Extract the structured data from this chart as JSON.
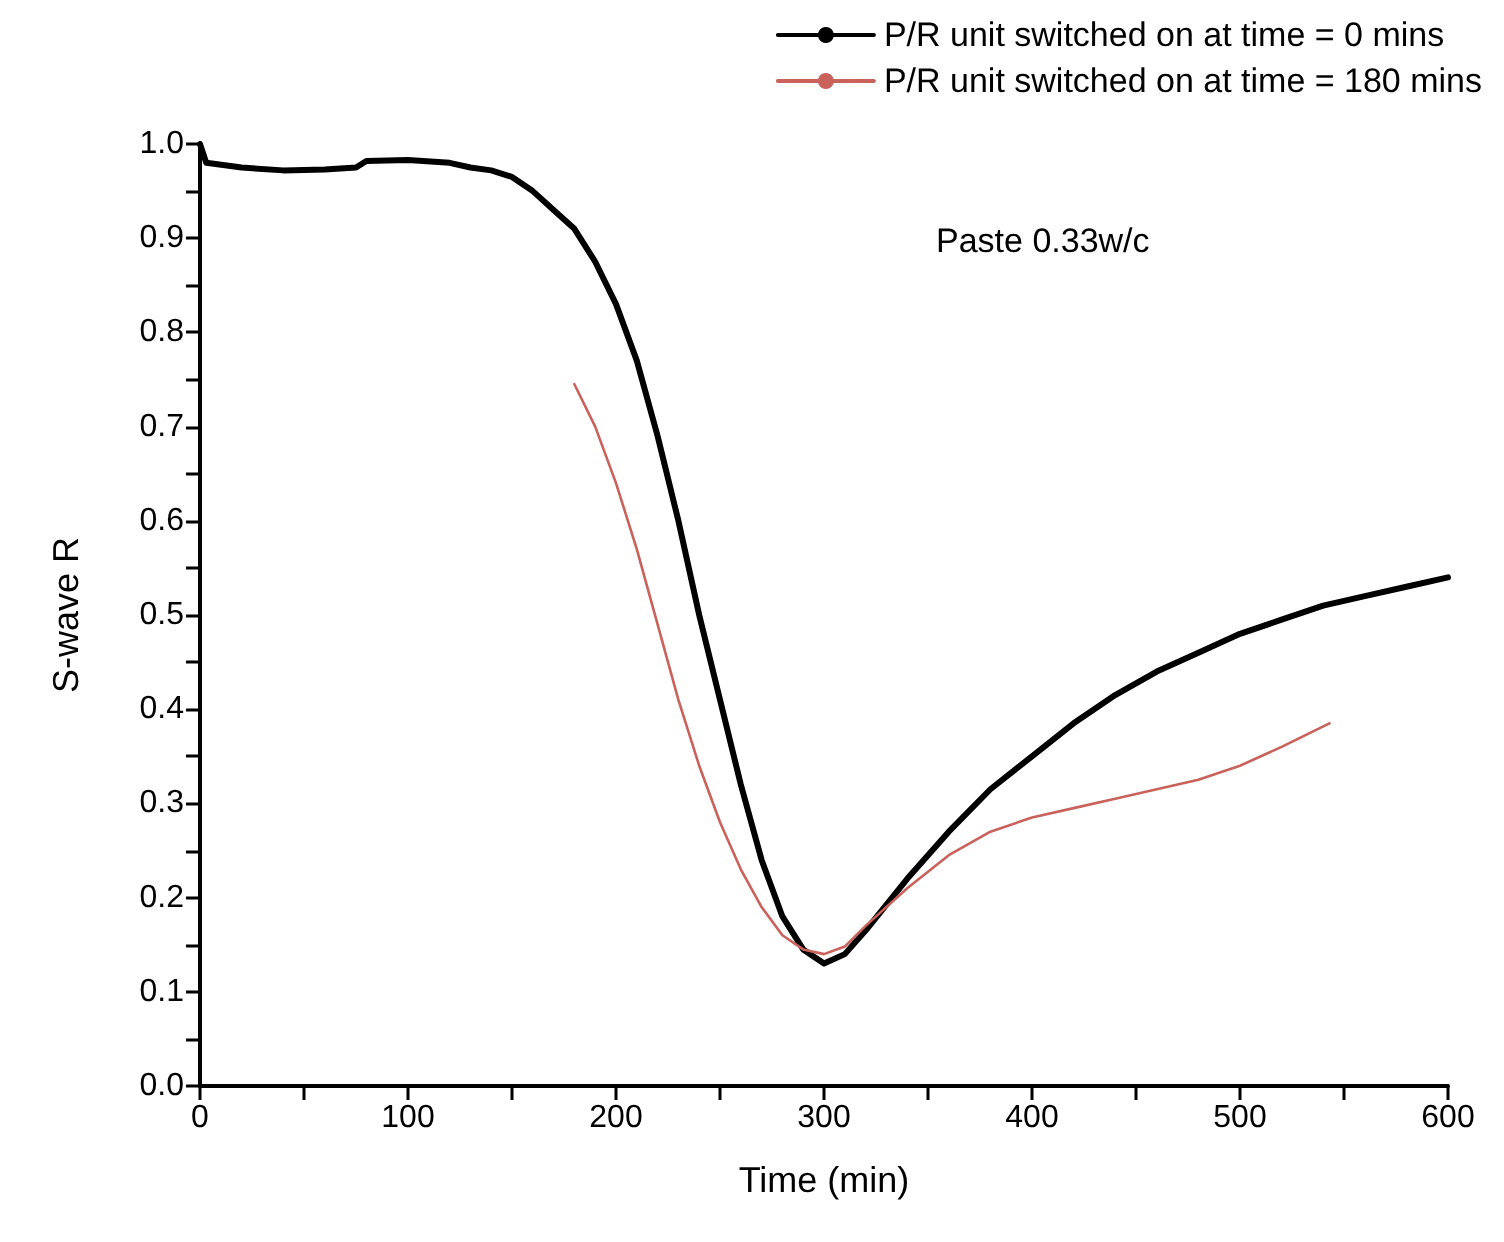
{
  "chart_data": {
    "type": "line",
    "xlabel": "Time (min)",
    "ylabel": "S-wave R",
    "annotations": [
      "Paste 0.33w/c"
    ],
    "xlim": [
      0,
      600
    ],
    "xticks": [
      0,
      100,
      200,
      300,
      400,
      500,
      600
    ],
    "ylim": [
      0,
      1
    ],
    "yticks": [
      {
        "value": 0,
        "label": "0.0"
      },
      {
        "value": 0.1,
        "label": "0.1"
      },
      {
        "value": 0.2,
        "label": "0.2"
      },
      {
        "value": 0.3,
        "label": "0.3"
      },
      {
        "value": 0.4,
        "label": "0.4"
      },
      {
        "value": 0.5,
        "label": "0.5"
      },
      {
        "value": 0.6,
        "label": "0.6"
      },
      {
        "value": 0.7,
        "label": "0.7"
      },
      {
        "value": 0.8,
        "label": "0.8"
      },
      {
        "value": 0.9,
        "label": "0.9"
      },
      {
        "value": 1,
        "label": "1.0"
      }
    ],
    "grid": false,
    "legend": "top right",
    "marker": "none",
    "line_style": "solid",
    "series": [
      {
        "name": "P/R unit switched on at time = 0 mins",
        "color": "#000000",
        "x": [
          0,
          3,
          20,
          40,
          60,
          75,
          80,
          100,
          120,
          130,
          140,
          150,
          160,
          170,
          180,
          190,
          200,
          210,
          220,
          230,
          240,
          250,
          260,
          270,
          280,
          290,
          300,
          310,
          320,
          340,
          360,
          380,
          400,
          420,
          440,
          460,
          480,
          500,
          520,
          540,
          560,
          580,
          600
        ],
        "values": [
          1.0,
          0.98,
          0.975,
          0.972,
          0.973,
          0.975,
          0.982,
          0.983,
          0.98,
          0.975,
          0.972,
          0.965,
          0.95,
          0.93,
          0.91,
          0.875,
          0.83,
          0.77,
          0.69,
          0.6,
          0.5,
          0.41,
          0.32,
          0.24,
          0.18,
          0.145,
          0.13,
          0.14,
          0.165,
          0.22,
          0.27,
          0.315,
          0.35,
          0.385,
          0.415,
          0.44,
          0.46,
          0.48,
          0.495,
          0.51,
          0.52,
          0.53,
          0.54
        ]
      },
      {
        "name": "P/R unit switched on at time = 180 mins",
        "color": "#c8625a",
        "x": [
          180,
          190,
          200,
          210,
          220,
          230,
          240,
          250,
          260,
          270,
          280,
          290,
          300,
          310,
          320,
          340,
          360,
          380,
          400,
          420,
          440,
          460,
          480,
          500,
          520,
          543
        ],
        "values": [
          0.745,
          0.7,
          0.64,
          0.57,
          0.49,
          0.41,
          0.34,
          0.28,
          0.23,
          0.19,
          0.16,
          0.145,
          0.14,
          0.148,
          0.17,
          0.21,
          0.245,
          0.27,
          0.285,
          0.295,
          0.305,
          0.315,
          0.325,
          0.34,
          0.36,
          0.385
        ]
      }
    ]
  }
}
